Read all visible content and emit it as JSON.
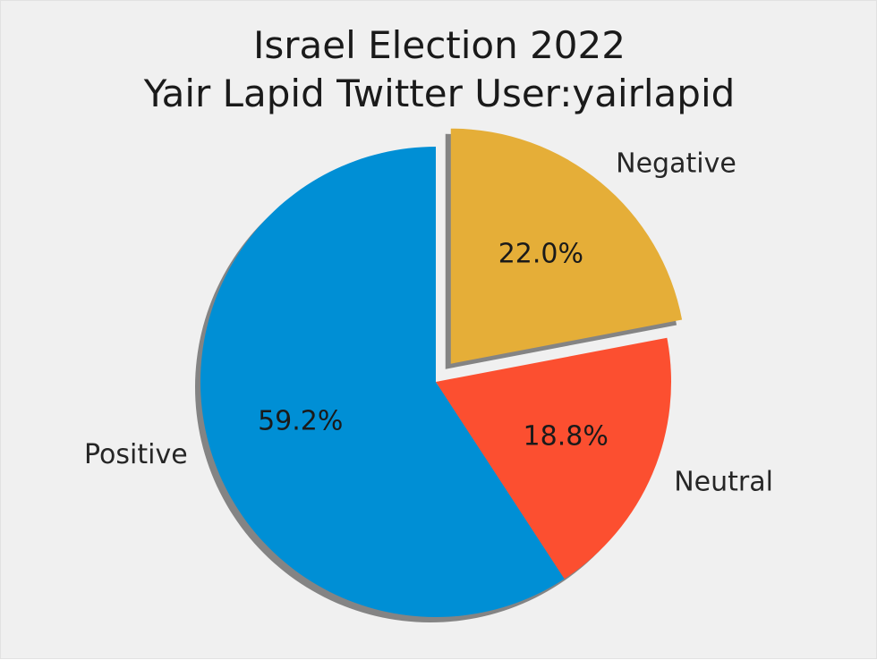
{
  "chart_data": {
    "type": "pie",
    "title_lines": [
      "Israel Election 2022",
      "Yair Lapid Twitter User:yairlapid"
    ],
    "slices": [
      {
        "label": "Positive",
        "value": 59.2,
        "pct_label": "59.2%",
        "color": "#008fd5"
      },
      {
        "label": "Neutral",
        "value": 18.8,
        "pct_label": "18.8%",
        "color": "#fc4f30"
      },
      {
        "label": "Negative",
        "value": 22.0,
        "pct_label": "22.0%",
        "color": "#e5ae38"
      }
    ],
    "explode": [
      0,
      0,
      0.1
    ],
    "start_angle_deg": 90,
    "direction": "counterclockwise",
    "shadow": true
  }
}
